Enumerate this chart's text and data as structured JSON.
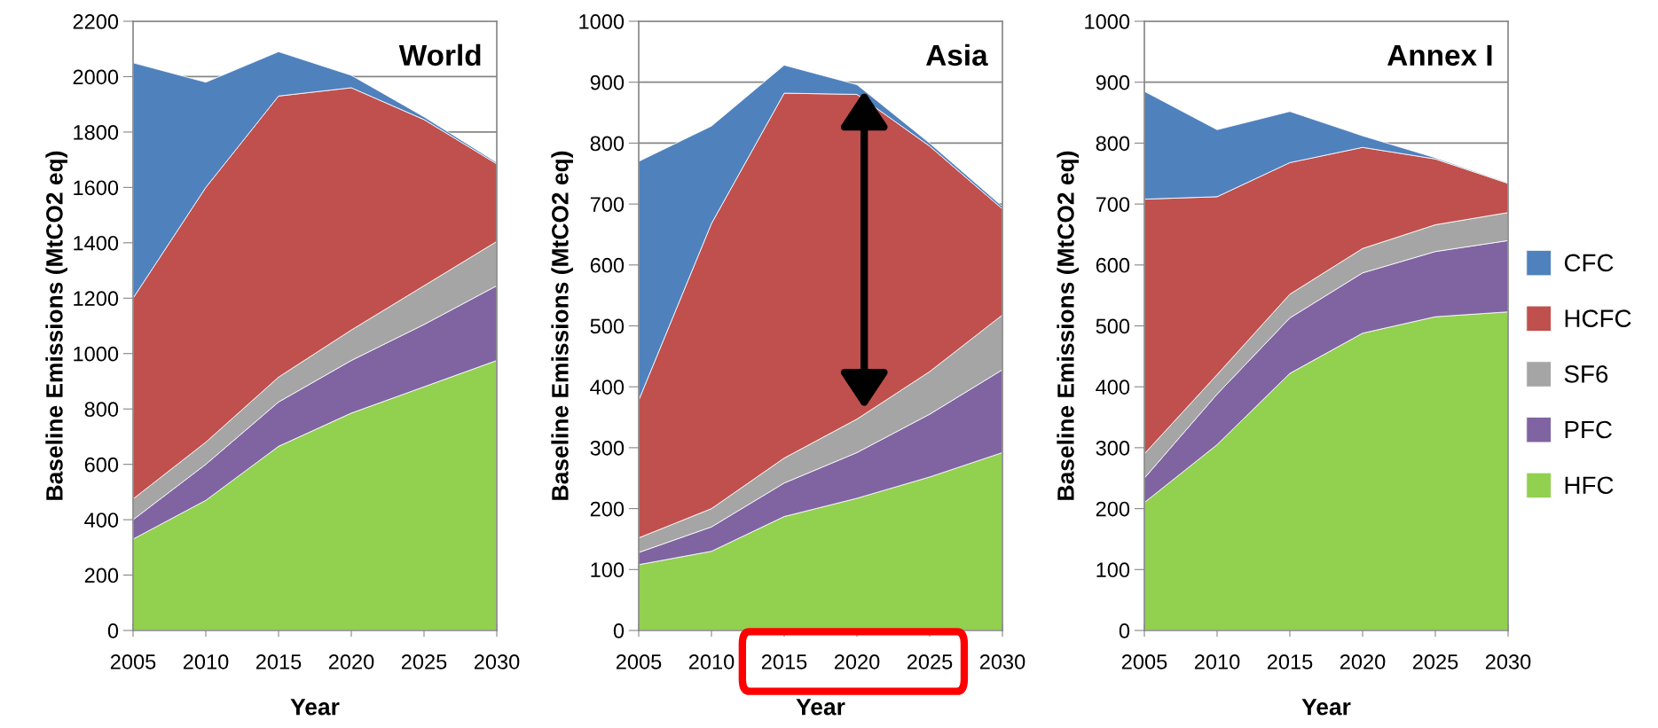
{
  "chart_data": [
    {
      "type": "area",
      "stacked": true,
      "title": "World",
      "xlabel": "Year",
      "ylabel": "Baseline Emissions (MtCO2 eq)",
      "x": [
        2005,
        2010,
        2015,
        2020,
        2025,
        2030
      ],
      "xlim": [
        2005,
        2030
      ],
      "xticks": [
        2005,
        2010,
        2015,
        2020,
        2025,
        2030
      ],
      "ylim": [
        0,
        2200
      ],
      "yticks": [
        0,
        200,
        400,
        600,
        800,
        1000,
        1200,
        1400,
        1600,
        1800,
        2000,
        2200
      ],
      "grid": "y",
      "series": [
        {
          "color": "#92d050",
          "values": [
            330,
            470,
            665,
            785,
            880,
            975
          ]
        },
        {
          "color": "#8064a2",
          "values": [
            70,
            130,
            160,
            190,
            225,
            270
          ]
        },
        {
          "color": "#a5a5a5",
          "values": [
            75,
            80,
            90,
            110,
            140,
            160
          ]
        },
        {
          "color": "#c0504d",
          "values": [
            725,
            920,
            1015,
            875,
            600,
            280
          ]
        },
        {
          "color": "#4f81bd",
          "values": [
            850,
            380,
            160,
            45,
            10,
            5
          ]
        }
      ]
    },
    {
      "type": "area",
      "stacked": true,
      "title": "Asia",
      "xlabel": "Year",
      "ylabel": "Baseline Emissions (MtCO2 eq)",
      "x": [
        2005,
        2010,
        2015,
        2020,
        2025,
        2030
      ],
      "xlim": [
        2005,
        2030
      ],
      "xticks": [
        2005,
        2010,
        2015,
        2020,
        2025,
        2030
      ],
      "ylim": [
        0,
        1000
      ],
      "yticks": [
        0,
        100,
        200,
        300,
        400,
        500,
        600,
        700,
        800,
        900,
        1000
      ],
      "grid": "y",
      "series": [
        {
          "color": "#92d050",
          "values": [
            108,
            130,
            187,
            217,
            252,
            292
          ]
        },
        {
          "color": "#8064a2",
          "values": [
            20,
            40,
            55,
            75,
            103,
            136
          ]
        },
        {
          "color": "#a5a5a5",
          "values": [
            24,
            30,
            41,
            55,
            70,
            90
          ]
        },
        {
          "color": "#c0504d",
          "values": [
            226,
            468,
            599,
            533,
            370,
            174
          ]
        },
        {
          "color": "#4f81bd",
          "values": [
            392,
            160,
            46,
            16,
            5,
            4
          ]
        }
      ]
    },
    {
      "type": "area",
      "stacked": true,
      "title": "Annex I",
      "xlabel": "Year",
      "ylabel": "Baseline Emissions (MtCO2 eq)",
      "x": [
        2005,
        2010,
        2015,
        2020,
        2025,
        2030
      ],
      "xlim": [
        2005,
        2030
      ],
      "xticks": [
        2005,
        2010,
        2015,
        2020,
        2025,
        2030
      ],
      "ylim": [
        0,
        1000
      ],
      "yticks": [
        0,
        100,
        200,
        300,
        400,
        500,
        600,
        700,
        800,
        900,
        1000
      ],
      "grid": "y",
      "legend": "right",
      "series": [
        {
          "name": "HFC",
          "color": "#92d050",
          "values": [
            210,
            305,
            422,
            488,
            515,
            523
          ]
        },
        {
          "name": "PFC",
          "color": "#8064a2",
          "values": [
            40,
            83,
            91,
            99,
            107,
            117
          ]
        },
        {
          "name": "SF6",
          "color": "#a5a5a5",
          "values": [
            40,
            32,
            39,
            40,
            44,
            46
          ]
        },
        {
          "name": "HCFC",
          "color": "#c0504d",
          "values": [
            418,
            292,
            216,
            166,
            108,
            48
          ]
        },
        {
          "name": "CFC",
          "color": "#4f81bd",
          "values": [
            177,
            110,
            84,
            19,
            2,
            1
          ]
        }
      ]
    }
  ]
}
